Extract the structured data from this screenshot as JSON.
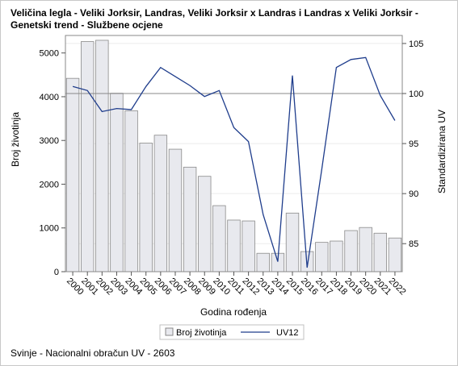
{
  "title_line1": "Veličina legla - Veliki Jorksir, Landras, Veliki Jorksir x Landras i Landras x Veliki Jorksir -",
  "title_line2": "Genetski trend - Službene ocjene",
  "footnote": "Svinje - Nacionalni obračun UV - 2603",
  "chart_data": {
    "type": "bar",
    "xlabel": "Godina rođenja",
    "ylabel": "Broj životinja",
    "y2label": "Standardizirana UV",
    "ylim": [
      0,
      5400
    ],
    "y2lim": [
      82.2,
      105.8
    ],
    "yticks": [
      0,
      1000,
      2000,
      3000,
      4000,
      5000
    ],
    "y2ticks": [
      85,
      90,
      95,
      100,
      105
    ],
    "reference_line_y2": 100,
    "categories": [
      "2000",
      "2001",
      "2002",
      "2003",
      "2004",
      "2005",
      "2006",
      "2007",
      "2008",
      "2009",
      "2010",
      "2011",
      "2012",
      "2013",
      "2014",
      "2015",
      "2016",
      "2017",
      "2018",
      "2019",
      "2020",
      "2021",
      "2022"
    ],
    "series": [
      {
        "name": "Broj životinja",
        "type": "bar",
        "axis": "left",
        "color": "#e8e9ee",
        "values": [
          4420,
          5260,
          5290,
          4080,
          3680,
          2940,
          3120,
          2800,
          2390,
          2180,
          1510,
          1180,
          1160,
          420,
          420,
          1340,
          460,
          670,
          700,
          940,
          1010,
          880,
          770
        ]
      },
      {
        "name": "UV12",
        "type": "line",
        "axis": "right",
        "color": "#1f3d8c",
        "values": [
          100.7,
          100.3,
          98.2,
          98.5,
          98.4,
          100.7,
          102.6,
          101.7,
          100.8,
          99.7,
          100.3,
          96.6,
          95.2,
          87.9,
          83.2,
          101.8,
          82.6,
          92.4,
          102.6,
          103.4,
          103.6,
          99.8,
          97.3
        ]
      }
    ],
    "legend_position": "bottom",
    "grid": true
  }
}
